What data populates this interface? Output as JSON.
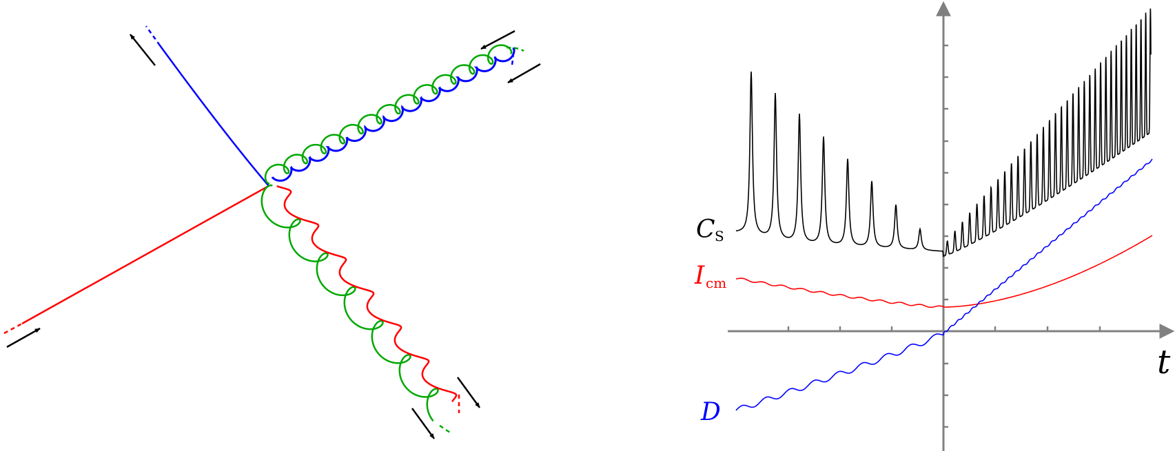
{
  "colors": {
    "red": "#ff0000",
    "green": "#00a800",
    "blue": "#0000ff",
    "black": "#000000",
    "axis": "#808080"
  },
  "left_panel": {
    "incoming_particles": [
      "red",
      "green",
      "blue"
    ],
    "outgoing_particles": [
      "blue",
      "red",
      "green"
    ]
  },
  "right_panel": {
    "axis_label": "t",
    "curves": [
      {
        "key": "Cs",
        "symbol": "C",
        "subscript": "S",
        "color": "#000000"
      },
      {
        "key": "Icm",
        "symbol": "I",
        "subscript": "cm",
        "color": "#ff0000"
      },
      {
        "key": "D",
        "symbol": "D",
        "subscript": "",
        "color": "#0000ff"
      }
    ]
  }
}
